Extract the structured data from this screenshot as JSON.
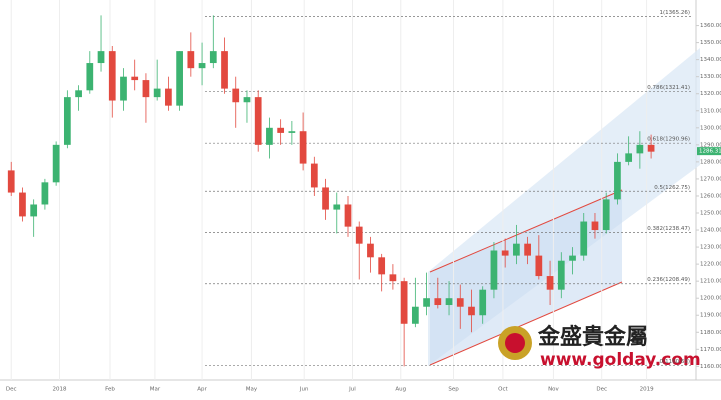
{
  "chart_data": {
    "type": "candlestick",
    "up_color": "#3cb371",
    "down_color": "#e2493f",
    "x": [
      0,
      1,
      2,
      3,
      4,
      5,
      6,
      7,
      8,
      9,
      10,
      11,
      12,
      13,
      14,
      15,
      16,
      17,
      18,
      19,
      20,
      21,
      22,
      23,
      24,
      25,
      26,
      27,
      28,
      29,
      30,
      31,
      32,
      33,
      34,
      35,
      36,
      37,
      38,
      39,
      40,
      41,
      42,
      43,
      44,
      45,
      46,
      47,
      48,
      49,
      50,
      51,
      52,
      53,
      54,
      55,
      56,
      57
    ],
    "open": [
      1275,
      1262,
      1248,
      1255,
      1268,
      1290,
      1318,
      1322,
      1338,
      1345,
      1316,
      1330,
      1328,
      1318,
      1323,
      1313,
      1345,
      1335,
      1338,
      1345,
      1323,
      1315,
      1318,
      1290,
      1300,
      1297,
      1298,
      1279,
      1265,
      1252,
      1255,
      1242,
      1232,
      1224,
      1214,
      1210,
      1185,
      1195,
      1200,
      1196,
      1200,
      1195,
      1190,
      1205,
      1228,
      1225,
      1232,
      1225,
      1213,
      1205,
      1222,
      1225,
      1245,
      1240,
      1258,
      1280,
      1285,
      1290
    ],
    "high": [
      1280,
      1265,
      1258,
      1270,
      1292,
      1322,
      1325,
      1345,
      1366,
      1348,
      1335,
      1340,
      1332,
      1340,
      1330,
      1345,
      1356,
      1350,
      1366,
      1353,
      1330,
      1322,
      1322,
      1306,
      1305,
      1304,
      1309,
      1283,
      1270,
      1262,
      1260,
      1245,
      1236,
      1226,
      1220,
      1212,
      1212,
      1215,
      1212,
      1210,
      1208,
      1205,
      1207,
      1233,
      1235,
      1243,
      1236,
      1237,
      1222,
      1227,
      1230,
      1250,
      1250,
      1262,
      1285,
      1295,
      1298,
      1296
    ],
    "low": [
      1260,
      1245,
      1236,
      1252,
      1266,
      1288,
      1310,
      1320,
      1333,
      1306,
      1310,
      1322,
      1303,
      1316,
      1310,
      1310,
      1330,
      1325,
      1335,
      1320,
      1300,
      1303,
      1286,
      1282,
      1290,
      1290,
      1275,
      1260,
      1246,
      1238,
      1236,
      1211,
      1215,
      1204,
      1205,
      1160,
      1183,
      1190,
      1194,
      1190,
      1182,
      1180,
      1185,
      1200,
      1218,
      1220,
      1220,
      1211,
      1196,
      1200,
      1214,
      1222,
      1235,
      1238,
      1255,
      1278,
      1276,
      1282
    ],
    "close": [
      1262,
      1248,
      1255,
      1268,
      1290,
      1318,
      1322,
      1338,
      1345,
      1316,
      1330,
      1328,
      1318,
      1323,
      1313,
      1345,
      1335,
      1338,
      1345,
      1323,
      1315,
      1318,
      1290,
      1300,
      1297,
      1298,
      1279,
      1265,
      1252,
      1255,
      1242,
      1232,
      1224,
      1214,
      1210,
      1185,
      1195,
      1200,
      1196,
      1200,
      1195,
      1190,
      1205,
      1228,
      1225,
      1232,
      1225,
      1213,
      1205,
      1222,
      1225,
      1245,
      1240,
      1258,
      1280,
      1285,
      1290,
      1286
    ],
    "xlim": [
      -1,
      61
    ],
    "ylim": [
      1152,
      1375
    ],
    "xticks": [
      {
        "value": 0,
        "label": "Dec"
      },
      {
        "value": 4.3,
        "label": "2018"
      },
      {
        "value": 8.8,
        "label": "Feb"
      },
      {
        "value": 12.8,
        "label": "Mar"
      },
      {
        "value": 17,
        "label": "Apr"
      },
      {
        "value": 21.4,
        "label": "May"
      },
      {
        "value": 26.1,
        "label": "Jun"
      },
      {
        "value": 30.4,
        "label": "Jul"
      },
      {
        "value": 34.7,
        "label": "Aug"
      },
      {
        "value": 39.4,
        "label": "Sep"
      },
      {
        "value": 43.8,
        "label": "Oct"
      },
      {
        "value": 48.3,
        "label": "Nov"
      },
      {
        "value": 52.6,
        "label": "Dec"
      },
      {
        "value": 56.6,
        "label": "2019"
      }
    ],
    "yticks": [
      {
        "value": 1160,
        "label": "1160.00"
      },
      {
        "value": 1170,
        "label": "1170.00"
      },
      {
        "value": 1180,
        "label": "1180.00"
      },
      {
        "value": 1190,
        "label": "1190.00"
      },
      {
        "value": 1200,
        "label": "1200.00"
      },
      {
        "value": 1210,
        "label": "1210.00"
      },
      {
        "value": 1220,
        "label": "1220.00"
      },
      {
        "value": 1230,
        "label": "1230.00"
      },
      {
        "value": 1240,
        "label": "1240.00"
      },
      {
        "value": 1250,
        "label": "1250.00"
      },
      {
        "value": 1260,
        "label": "1260.00"
      },
      {
        "value": 1270,
        "label": "1270.00"
      },
      {
        "value": 1280,
        "label": "1280.00"
      },
      {
        "value": 1290,
        "label": "1290.00"
      },
      {
        "value": 1300,
        "label": "1300.00"
      },
      {
        "value": 1310,
        "label": "1310.00"
      },
      {
        "value": 1320,
        "label": "1320.00"
      },
      {
        "value": 1330,
        "label": "1330.00"
      },
      {
        "value": 1340,
        "label": "1340.00"
      },
      {
        "value": 1350,
        "label": "1350.00"
      },
      {
        "value": 1360,
        "label": "1360.00"
      }
    ],
    "fib_levels": [
      {
        "value": 1365.26,
        "label": "1(1365.26)"
      },
      {
        "value": 1321.41,
        "label": "0.786(1321.41)"
      },
      {
        "value": 1290.96,
        "label": "0.618(1290.96)"
      },
      {
        "value": 1262.75,
        "label": "0.5(1262.75)"
      },
      {
        "value": 1238.47,
        "label": "0.382(1238.47)"
      },
      {
        "value": 1208.49,
        "label": "0.236(1208.49)"
      },
      {
        "value": 1160.63,
        "label": "0(1160.63)"
      }
    ],
    "current_price": {
      "value": 1286.31,
      "label": "1286.31"
    }
  },
  "watermark": {
    "name": "金盛貴金屬",
    "url": "www.golday.com"
  }
}
